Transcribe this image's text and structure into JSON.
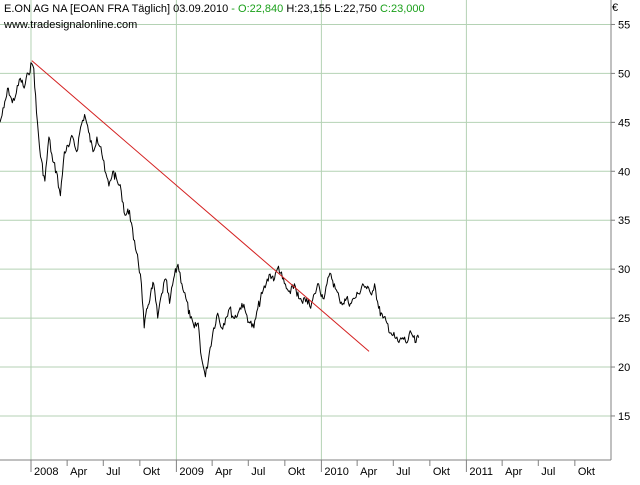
{
  "header": {
    "name": "E.ON AG NA",
    "symbol": "[EOAN FRA",
    "period": "Täglich]",
    "date": "03.09.2010",
    "open": "- O:22,840",
    "high": "H:23,155",
    "low": "L:22,750",
    "close": "C:23,000"
  },
  "source": "www.tradesignalonline.com",
  "currency": "€",
  "colors": {
    "price": "#000000",
    "trendline": "#d42020",
    "grid": "#b4d2b4",
    "axis": "#808080",
    "open_close_text": "#1aa01a"
  },
  "chart_data": {
    "type": "line",
    "title": "E.ON AG NA [EOAN FRA Täglich]",
    "xlabel": "",
    "ylabel": "",
    "x_range": [
      "2007-10-15",
      "2011-12-31"
    ],
    "ylim": [
      10.5,
      57.5
    ],
    "y_ticks": [
      15,
      20,
      25,
      30,
      35,
      40,
      45,
      50,
      55
    ],
    "grid": true,
    "x_ticks": [
      {
        "date": "2008-01-01",
        "label": "2008",
        "major": true
      },
      {
        "date": "2008-04-01",
        "label": "Apr",
        "major": false
      },
      {
        "date": "2008-07-01",
        "label": "Jul",
        "major": false
      },
      {
        "date": "2008-10-01",
        "label": "Okt",
        "major": false
      },
      {
        "date": "2009-01-01",
        "label": "2009",
        "major": true
      },
      {
        "date": "2009-04-01",
        "label": "Apr",
        "major": false
      },
      {
        "date": "2009-07-01",
        "label": "Jul",
        "major": false
      },
      {
        "date": "2009-10-01",
        "label": "Okt",
        "major": false
      },
      {
        "date": "2010-01-01",
        "label": "2010",
        "major": true
      },
      {
        "date": "2010-04-01",
        "label": "Apr",
        "major": false
      },
      {
        "date": "2010-07-01",
        "label": "Jul",
        "major": false
      },
      {
        "date": "2010-10-01",
        "label": "Okt",
        "major": false
      },
      {
        "date": "2011-01-01",
        "label": "2011",
        "major": true
      },
      {
        "date": "2011-04-01",
        "label": "Apr",
        "major": false
      },
      {
        "date": "2011-07-01",
        "label": "Jul",
        "major": false
      },
      {
        "date": "2011-10-01",
        "label": "Okt",
        "major": false
      }
    ],
    "series": [
      {
        "type": "line",
        "x": [
          "2007-10-15",
          "2007-10-25",
          "2007-11-05",
          "2007-11-15",
          "2007-11-25",
          "2007-12-05",
          "2007-12-15",
          "2007-12-25",
          "2008-01-03",
          "2008-01-08",
          "2008-01-15",
          "2008-01-25",
          "2008-02-05",
          "2008-02-15",
          "2008-02-25",
          "2008-03-05",
          "2008-03-15",
          "2008-03-25",
          "2008-04-05",
          "2008-04-15",
          "2008-04-25",
          "2008-05-05",
          "2008-05-15",
          "2008-05-25",
          "2008-06-05",
          "2008-06-15",
          "2008-06-25",
          "2008-07-05",
          "2008-07-15",
          "2008-07-25",
          "2008-08-05",
          "2008-08-15",
          "2008-08-25",
          "2008-09-05",
          "2008-09-15",
          "2008-09-25",
          "2008-10-05",
          "2008-10-12",
          "2008-10-20",
          "2008-10-28",
          "2008-11-05",
          "2008-11-15",
          "2008-11-25",
          "2008-12-05",
          "2008-12-15",
          "2008-12-25",
          "2009-01-05",
          "2009-01-15",
          "2009-01-25",
          "2009-02-05",
          "2009-02-15",
          "2009-02-25",
          "2009-03-05",
          "2009-03-10",
          "2009-03-15",
          "2009-03-25",
          "2009-04-05",
          "2009-04-15",
          "2009-04-25",
          "2009-05-05",
          "2009-05-15",
          "2009-05-25",
          "2009-06-05",
          "2009-06-15",
          "2009-06-25",
          "2009-07-05",
          "2009-07-15",
          "2009-07-25",
          "2009-08-05",
          "2009-08-15",
          "2009-08-25",
          "2009-09-05",
          "2009-09-15",
          "2009-09-25",
          "2009-10-05",
          "2009-10-15",
          "2009-10-25",
          "2009-11-05",
          "2009-11-15",
          "2009-11-25",
          "2009-12-05",
          "2009-12-15",
          "2009-12-25",
          "2010-01-05",
          "2010-01-15",
          "2010-01-25",
          "2010-02-05",
          "2010-02-15",
          "2010-02-25",
          "2010-03-05",
          "2010-03-15",
          "2010-03-25",
          "2010-04-05",
          "2010-04-15",
          "2010-04-25",
          "2010-05-05",
          "2010-05-15",
          "2010-05-25",
          "2010-06-05",
          "2010-06-15",
          "2010-06-25",
          "2010-07-05",
          "2010-07-15",
          "2010-07-25",
          "2010-08-05",
          "2010-08-15",
          "2010-08-25",
          "2010-09-03"
        ],
        "y": [
          45.0,
          46.5,
          48.5,
          47.0,
          48.0,
          49.5,
          48.5,
          50.0,
          51.0,
          50.5,
          46.0,
          41.5,
          39.0,
          43.5,
          41.0,
          40.0,
          37.5,
          42.0,
          42.5,
          43.5,
          42.0,
          44.5,
          45.8,
          44.0,
          42.0,
          43.5,
          42.5,
          40.0,
          38.5,
          40.0,
          39.0,
          38.0,
          35.5,
          36.0,
          33.0,
          31.5,
          28.5,
          24.0,
          26.0,
          27.5,
          28.5,
          25.0,
          27.5,
          29.0,
          26.5,
          29.0,
          30.5,
          28.5,
          27.0,
          25.0,
          24.0,
          24.5,
          21.0,
          20.0,
          19.0,
          21.5,
          24.0,
          25.5,
          24.0,
          25.0,
          26.0,
          25.0,
          25.5,
          26.5,
          25.5,
          24.5,
          24.0,
          26.0,
          27.5,
          28.5,
          29.5,
          29.0,
          30.3,
          29.0,
          28.0,
          27.5,
          28.5,
          27.0,
          26.5,
          27.0,
          26.0,
          27.5,
          28.5,
          27.0,
          28.5,
          29.5,
          28.0,
          27.0,
          26.5,
          27.0,
          26.5,
          27.0,
          27.5,
          28.5,
          28.0,
          27.5,
          28.5,
          26.0,
          25.0,
          24.5,
          23.5,
          23.0,
          22.5,
          23.0,
          22.5,
          23.5,
          22.5,
          23.0
        ]
      },
      {
        "type": "trendline",
        "x": [
          "2008-01-03",
          "2010-05-01"
        ],
        "y": [
          51.3,
          21.6
        ]
      }
    ]
  }
}
